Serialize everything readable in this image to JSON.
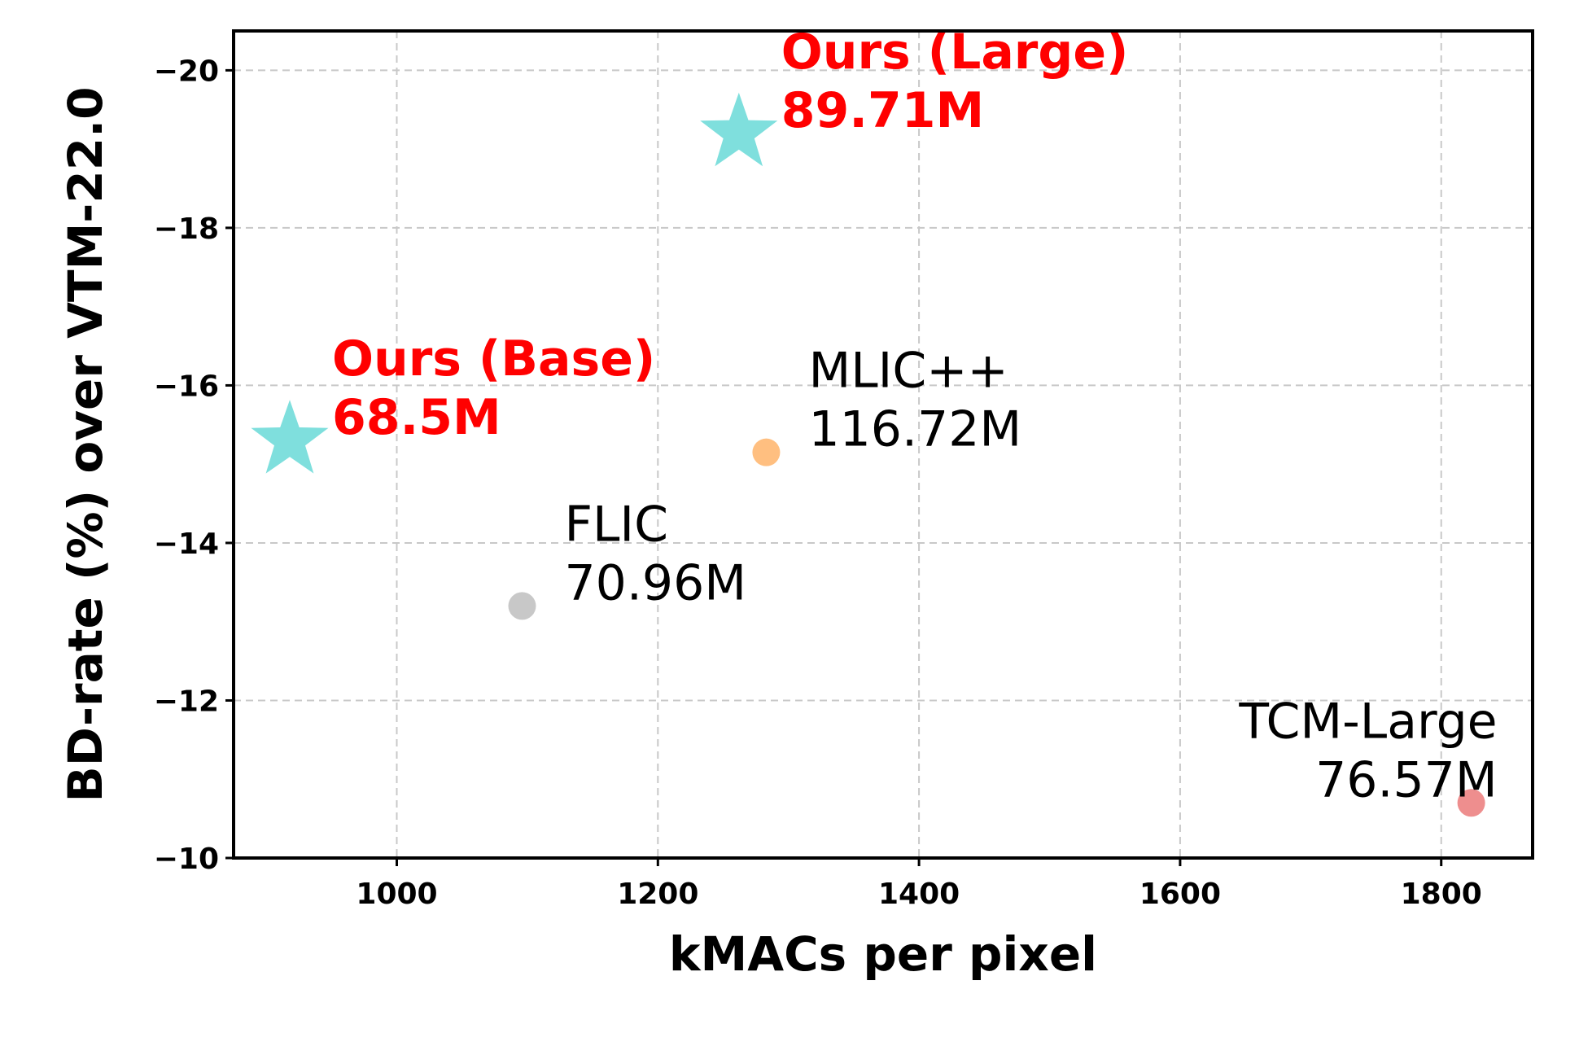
{
  "chart_data": {
    "type": "scatter",
    "xlabel": "kMACs per pixel",
    "ylabel": "BD-rate (%) over VTM-22.0",
    "xlim": [
      875,
      1870
    ],
    "ylim": [
      -10,
      -20.5
    ],
    "y_inverted": true,
    "grid": true,
    "x_ticks": [
      1000,
      1200,
      1400,
      1600,
      1800
    ],
    "x_tick_labels": [
      "1000",
      "1200",
      "1400",
      "1600",
      "1800"
    ],
    "y_ticks": [
      -20,
      -18,
      -16,
      -14,
      -12,
      -10
    ],
    "y_tick_labels": [
      "−20",
      "−18",
      "−16",
      "−14",
      "−12",
      "−10"
    ],
    "points": [
      {
        "name": "Ours (Large)",
        "params": "89.71M",
        "x": 1262,
        "y": -19.2,
        "marker": "star",
        "color": "#7fdfdd",
        "label_color": "#ff0000",
        "bold": true,
        "label_side": "right"
      },
      {
        "name": "Ours (Base)",
        "params": "68.5M",
        "x": 918,
        "y": -15.3,
        "marker": "star",
        "color": "#7fdfdd",
        "label_color": "#ff0000",
        "bold": true,
        "label_side": "right"
      },
      {
        "name": "MLIC++",
        "params": "116.72M",
        "x": 1283,
        "y": -15.15,
        "marker": "circle",
        "color": "#ffbf80",
        "label_color": "#000000",
        "bold": false,
        "label_side": "right"
      },
      {
        "name": "FLIC",
        "params": "70.96M",
        "x": 1096,
        "y": -13.2,
        "marker": "circle",
        "color": "#c8c8c8",
        "label_color": "#000000",
        "bold": false,
        "label_side": "right"
      },
      {
        "name": "TCM-Large",
        "params": "76.57M",
        "x": 1823,
        "y": -10.7,
        "marker": "circle",
        "color": "#ee8e8e",
        "label_color": "#000000",
        "bold": false,
        "label_side": "left"
      }
    ]
  }
}
